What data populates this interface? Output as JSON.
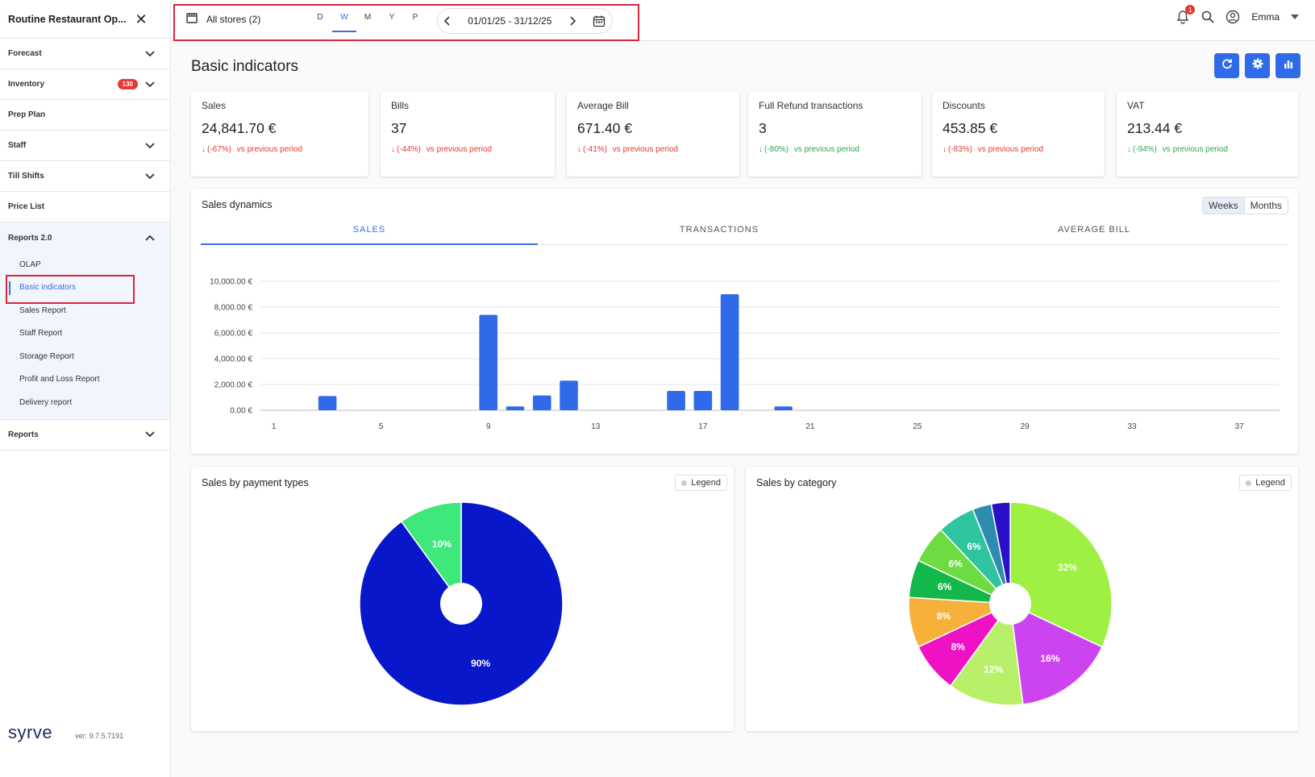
{
  "app": {
    "title": "Routine Restaurant Op...",
    "version": "ver: 9.7.5.7191",
    "logo": "syrve"
  },
  "sidebar": {
    "items": [
      {
        "label": "Forecast",
        "chevron": "down"
      },
      {
        "label": "Inventory",
        "badge": "130",
        "chevron": "down"
      },
      {
        "label": "Prep Plan"
      },
      {
        "label": "Staff",
        "chevron": "down"
      },
      {
        "label": "Till Shifts",
        "chevron": "down"
      },
      {
        "label": "Price List"
      }
    ],
    "reports2": {
      "label": "Reports 2.0",
      "subitems": [
        "OLAP",
        "Basic indicators",
        "Sales Report",
        "Staff Report",
        "Storage Report",
        "Profit and Loss Report",
        "Delivery report"
      ],
      "active": "Basic indicators"
    },
    "reports": {
      "label": "Reports"
    }
  },
  "topbar": {
    "store": "All stores (2)",
    "periods": [
      "D",
      "W",
      "M",
      "Y",
      "P"
    ],
    "active_period": "W",
    "date_range": "01/01/25 - 31/12/25",
    "notifications": "1",
    "user": "Emma"
  },
  "page": {
    "title": "Basic indicators"
  },
  "kpis": [
    {
      "title": "Sales",
      "value": "24,841.70 €",
      "delta": "(-67%)",
      "suffix": "vs previous period",
      "color": "red"
    },
    {
      "title": "Bills",
      "value": "37",
      "delta": "(-44%)",
      "suffix": "vs previous period",
      "color": "red"
    },
    {
      "title": "Average Bill",
      "value": "671.40 €",
      "delta": "(-41%)",
      "suffix": "vs previous period",
      "color": "red"
    },
    {
      "title": "Full Refund transactions",
      "value": "3",
      "delta": "(-80%)",
      "suffix": "vs previous period",
      "color": "green"
    },
    {
      "title": "Discounts",
      "value": "453.85 €",
      "delta": "(-83%)",
      "suffix": "vs previous period",
      "color": "red"
    },
    {
      "title": "VAT",
      "value": "213.44 €",
      "delta": "(-94%)",
      "suffix": "vs previous period",
      "color": "green"
    }
  ],
  "sales_dynamics": {
    "title": "Sales dynamics",
    "toggle": [
      "Weeks",
      "Months"
    ],
    "tabs": [
      "SALES",
      "TRANSACTIONS",
      "AVERAGE BILL"
    ],
    "active_tab": "SALES"
  },
  "payment_types": {
    "title": "Sales by payment types",
    "legend": "Legend"
  },
  "category": {
    "title": "Sales by category",
    "legend": "Legend"
  },
  "colors": {
    "accent": "#3a6ee8",
    "bar": "#2f6be8",
    "danger": "#e53935",
    "success": "#2ea84f"
  },
  "chart_data": [
    {
      "type": "bar",
      "title": "Sales dynamics",
      "ylim": [
        0,
        10000
      ],
      "yticks": [
        "0.00 €",
        "2,000.00 €",
        "4,000.00 €",
        "6,000.00 €",
        "8,000.00 €",
        "10,000.00 €"
      ],
      "xticks": [
        "1",
        "5",
        "9",
        "13",
        "17",
        "21",
        "25",
        "29",
        "33",
        "37"
      ],
      "x": [
        3,
        9,
        10,
        11,
        12,
        16,
        17,
        18,
        20
      ],
      "values": [
        1100,
        7400,
        300,
        1150,
        2300,
        1500,
        1500,
        9000,
        300
      ],
      "grid": true
    },
    {
      "type": "pie",
      "title": "Sales by payment types",
      "values": [
        90,
        10
      ],
      "labels": [
        "90%",
        "10%"
      ],
      "colors": [
        "#0717c9",
        "#3ee87a"
      ]
    },
    {
      "type": "pie",
      "title": "Sales by category",
      "values": [
        32,
        16,
        12,
        8,
        8,
        6,
        6,
        6,
        3,
        3
      ],
      "labels": [
        "32%",
        "16%",
        "12%",
        "8%",
        "8%",
        "6%",
        "6%",
        "6%",
        "",
        ""
      ],
      "colors": [
        "#9ef042",
        "#cc44f0",
        "#b8f06a",
        "#ee12c4",
        "#f7b13a",
        "#14b84a",
        "#6ddb42",
        "#2ec4a0",
        "#2d8cb0",
        "#2a10c8"
      ]
    }
  ]
}
